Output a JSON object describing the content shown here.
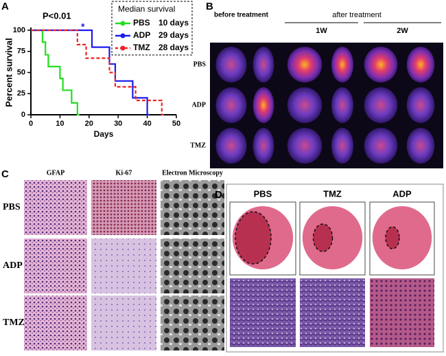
{
  "chart_data": {
    "type": "line",
    "panel": "A",
    "ylabel": "Percent survival",
    "xlabel": "Days",
    "xlim": [
      0,
      50
    ],
    "ylim": [
      0,
      100
    ],
    "xticks": [
      0,
      10,
      20,
      30,
      40,
      50
    ],
    "yticks": [
      0,
      25,
      50,
      75,
      100
    ],
    "pvalue": "P<0.01",
    "star": "*",
    "legend_title": "Median survival",
    "series": [
      {
        "name": "PBS",
        "median": "10 days",
        "color": "#22dd22",
        "dashed": false,
        "x": [
          0,
          4,
          5,
          6,
          10,
          11,
          14,
          16
        ],
        "values": [
          100,
          86,
          71,
          57,
          43,
          29,
          14,
          0
        ]
      },
      {
        "name": "ADP",
        "median": "29 days",
        "color": "#1a1aee",
        "dashed": false,
        "x": [
          0,
          21,
          27,
          29,
          35,
          40
        ],
        "values": [
          100,
          80,
          60,
          40,
          20,
          0
        ]
      },
      {
        "name": "TMZ",
        "median": "28 days",
        "color": "#ee2222",
        "dashed": true,
        "x": [
          0,
          16,
          19,
          27,
          29,
          36,
          45
        ],
        "values": [
          100,
          83,
          67,
          50,
          33,
          17,
          0
        ]
      }
    ]
  },
  "panel_b": {
    "label": "B",
    "header_left": "before treatment",
    "header_right": "after treatment",
    "columns": [
      "1W",
      "2W"
    ],
    "rows": [
      "PBS",
      "ADP",
      "TMZ"
    ]
  },
  "panel_c": {
    "label": "C",
    "columns": [
      "GFAP",
      "Ki-67",
      "Electron Microscopy"
    ],
    "rows": [
      "PBS",
      "ADP",
      "TMZ"
    ]
  },
  "panel_d": {
    "label": "D",
    "columns": [
      "PBS",
      "TMZ",
      "ADP"
    ]
  }
}
